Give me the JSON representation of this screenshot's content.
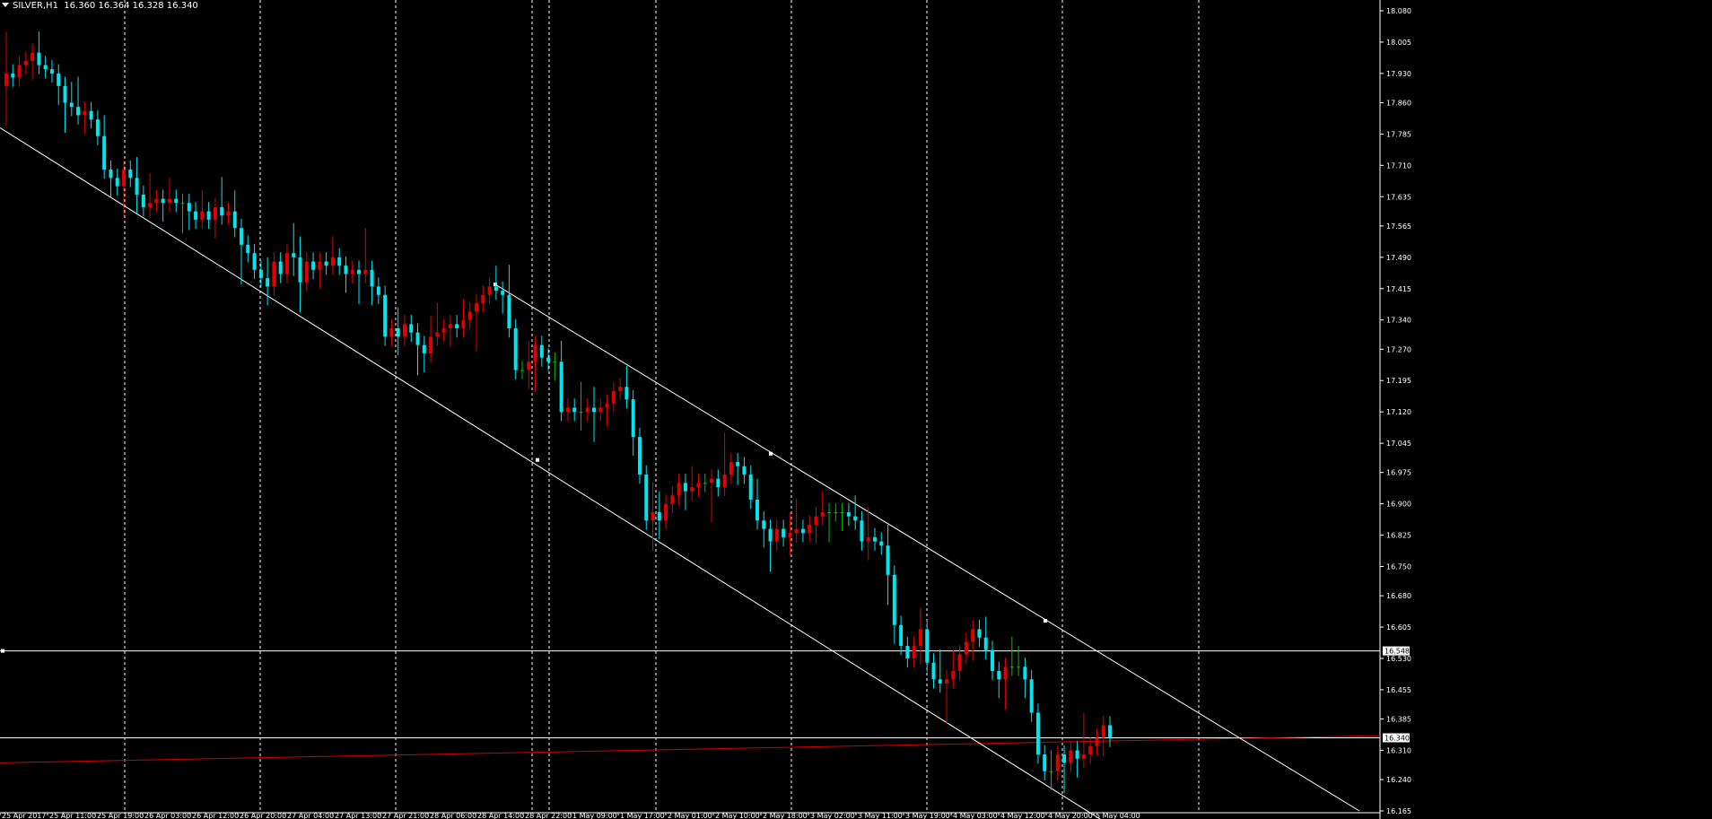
{
  "header": {
    "symbol": "SILVER,H1",
    "ohlc": "16.360 16.364 16.328 16.340"
  },
  "colors": {
    "background": "#000000",
    "bull": "#00E5EE",
    "bear": "#E00000",
    "doji": "#00C000",
    "trend": "#FFFFFF",
    "grid": "#FFFFFF",
    "red_line": "#D00000",
    "axis_text": "#FFFFFF"
  },
  "chart_data": {
    "type": "candlestick",
    "ylim": [
      16.165,
      18.08
    ],
    "y_ticks": [
      "18.080",
      "18.005",
      "17.930",
      "17.860",
      "17.785",
      "17.710",
      "17.635",
      "17.565",
      "17.490",
      "17.415",
      "17.340",
      "17.270",
      "17.195",
      "17.120",
      "17.045",
      "16.975",
      "16.900",
      "16.825",
      "16.750",
      "16.680",
      "16.605",
      "16.530",
      "16.455",
      "16.385",
      "16.310",
      "16.240",
      "16.165"
    ],
    "x_labels": [
      "25 Apr 2017",
      "25 Apr 11:00",
      "25 Apr 19:00",
      "26 Apr 03:00",
      "26 Apr 12:00",
      "26 Apr 20:00",
      "27 Apr 04:00",
      "27 Apr 13:00",
      "27 Apr 21:00",
      "28 Apr 06:00",
      "28 Apr 14:00",
      "28 Apr 22:00",
      "1 May 09:00",
      "1 May 17:00",
      "2 May 01:00",
      "2 May 10:00",
      "2 May 18:00",
      "3 May 02:00",
      "3 May 11:00",
      "3 May 19:00",
      "4 May 03:00",
      "4 May 12:00",
      "4 May 20:00",
      "5 May 04:00"
    ],
    "x_range": [
      "25 Apr 2017 00:00",
      "5 May 2017 04:00"
    ],
    "candles_per_label": 8,
    "price_markers": [
      {
        "label": "16.548",
        "value": 16.548
      },
      {
        "label": "16.340",
        "value": 16.34
      }
    ],
    "closes": [
      17.93,
      17.92,
      17.95,
      17.96,
      17.98,
      17.95,
      17.94,
      17.93,
      17.9,
      17.86,
      17.85,
      17.83,
      17.84,
      17.82,
      17.78,
      17.7,
      17.68,
      17.66,
      17.7,
      17.68,
      17.64,
      17.61,
      17.62,
      17.63,
      17.62,
      17.63,
      17.62,
      17.62,
      17.6,
      17.58,
      17.6,
      17.58,
      17.61,
      17.59,
      17.6,
      17.56,
      17.52,
      17.5,
      17.46,
      17.44,
      17.42,
      17.48,
      17.45,
      17.5,
      17.49,
      17.43,
      17.48,
      17.46,
      17.48,
      17.47,
      17.49,
      17.47,
      17.45,
      17.46,
      17.45,
      17.46,
      17.42,
      17.4,
      17.3,
      17.32,
      17.3,
      17.33,
      17.31,
      17.28,
      17.26,
      17.3,
      17.31,
      17.32,
      17.33,
      17.32,
      17.34,
      17.36,
      17.38,
      17.4,
      17.42,
      17.41,
      17.4,
      17.32,
      17.22,
      17.22,
      17.24,
      17.28,
      17.25,
      17.24,
      17.24,
      17.12,
      17.13,
      17.12,
      17.12,
      17.13,
      17.12,
      17.13,
      17.14,
      17.17,
      17.18,
      17.15,
      17.06,
      16.97,
      16.86,
      16.88,
      16.86,
      16.9,
      16.92,
      16.95,
      16.93,
      16.94,
      16.95,
      16.95,
      16.96,
      16.94,
      16.97,
      17,
      16.99,
      16.97,
      16.91,
      16.86,
      16.84,
      16.81,
      16.84,
      16.82,
      16.83,
      16.84,
      16.83,
      16.85,
      16.87,
      16.88,
      16.88,
      16.88,
      16.88,
      16.87,
      16.86,
      16.81,
      16.82,
      16.81,
      16.8,
      16.73,
      16.61,
      16.56,
      16.53,
      16.56,
      16.6,
      16.52,
      16.48,
      16.47,
      16.48,
      16.5,
      16.54,
      16.57,
      16.6,
      16.58,
      16.55,
      16.5,
      16.48,
      16.51,
      16.51,
      16.51,
      16.48,
      16.4,
      16.3,
      16.26,
      16.26,
      16.3,
      16.28,
      16.31,
      16.29,
      16.3,
      16.32,
      16.34,
      16.37,
      16.34
    ]
  }
}
